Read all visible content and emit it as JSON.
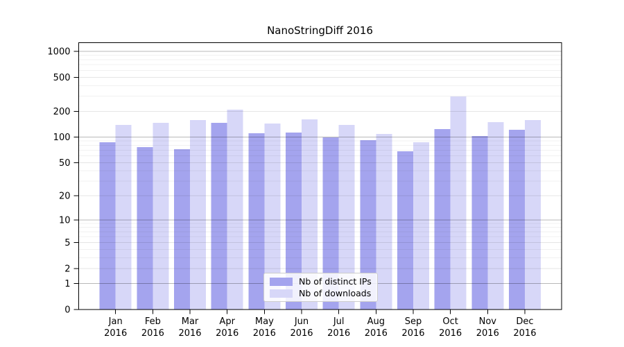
{
  "title": "NanoStringDiff 2016",
  "chart_data": {
    "type": "bar",
    "title": "NanoStringDiff 2016",
    "categories": [
      "Jan 2016",
      "Feb 2016",
      "Mar 2016",
      "Apr 2016",
      "May 2016",
      "Jun 2016",
      "Jul 2016",
      "Aug 2016",
      "Sep 2016",
      "Oct 2016",
      "Nov 2016",
      "Dec 2016"
    ],
    "months": [
      "Jan",
      "Feb",
      "Mar",
      "Apr",
      "May",
      "Jun",
      "Jul",
      "Aug",
      "Sep",
      "Oct",
      "Nov",
      "Dec"
    ],
    "year_label": "2016",
    "series": [
      {
        "name": "Nb of distinct IPs",
        "color": "#a4a4ee",
        "values": [
          87,
          76,
          72,
          147,
          111,
          113,
          99,
          92,
          68,
          124,
          103,
          122
        ]
      },
      {
        "name": "Nb of downloads",
        "color": "#d7d7f8",
        "values": [
          139,
          147,
          158,
          210,
          144,
          161,
          139,
          109,
          87,
          299,
          150,
          158
        ]
      }
    ],
    "y_axis": {
      "scale": "log1p",
      "ticks": [
        0,
        1,
        2,
        5,
        10,
        20,
        50,
        100,
        200,
        500,
        1000
      ],
      "tick_labels": [
        "0",
        "1",
        "2",
        "5",
        "10",
        "20",
        "50",
        "100",
        "200",
        "500",
        "1000"
      ],
      "minor_gridlines": [
        3,
        4,
        6,
        7,
        8,
        9,
        30,
        40,
        60,
        70,
        80,
        90,
        300,
        400,
        600,
        700,
        800,
        900
      ],
      "decade_gridlines": [
        1,
        10,
        100,
        1000
      ],
      "ylim_top": 1300
    },
    "xlabel": "",
    "ylabel": "",
    "grid": "horizontal",
    "legend": {
      "position": "lower center inside",
      "entries": [
        "Nb of distinct IPs",
        "Nb of downloads"
      ]
    }
  }
}
